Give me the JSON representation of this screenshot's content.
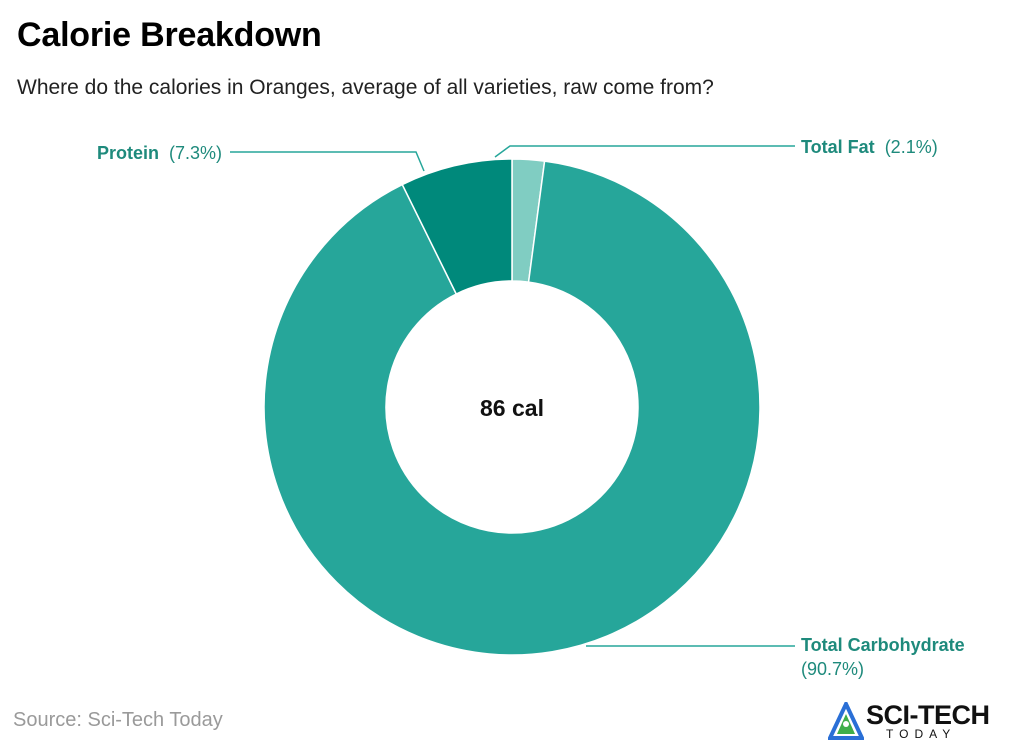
{
  "header": {
    "title": "Calorie Breakdown",
    "subtitle": "Where do the calories in Oranges, average of all varieties, raw come from?"
  },
  "chart_data": {
    "type": "pie",
    "variant": "donut",
    "title": "Calorie Breakdown",
    "center_label": "86 cal",
    "slices": [
      {
        "name": "Total Fat",
        "percent": 2.1,
        "percent_label": "(2.1%)",
        "color": "#80cdc2"
      },
      {
        "name": "Total Carbohydrate",
        "percent": 90.7,
        "percent_label": "(90.7%)",
        "color": "#26a69a"
      },
      {
        "name": "Protein",
        "percent": 7.3,
        "percent_label": "(7.3%)",
        "color": "#00897b"
      }
    ]
  },
  "footer": {
    "source": "Source: Sci-Tech Today",
    "logo_main": "SCI-TECH",
    "logo_sub": "TODAY"
  },
  "colors": {
    "label_text": "#1e8a7c",
    "leader_line": "#26a69a"
  }
}
